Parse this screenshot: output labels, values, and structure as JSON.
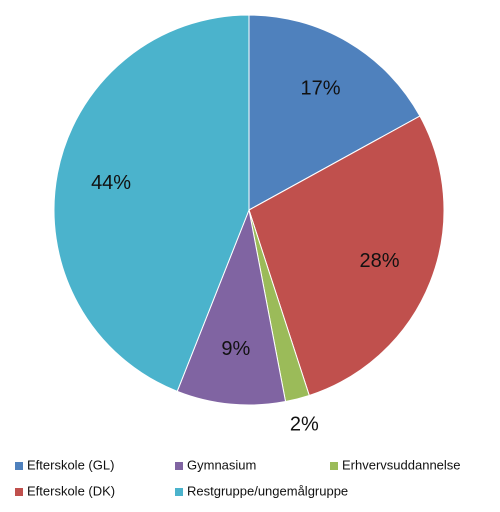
{
  "chart_data": {
    "type": "pie",
    "categories": [
      "Efterskole (GL)",
      "Efterskole (DK)",
      "Erhvervsuddannelse",
      "Gymnasium",
      "Restgruppe/ungemålgruppe"
    ],
    "values": [
      17,
      28,
      2,
      9,
      44
    ],
    "value_labels": [
      "17%",
      "28%",
      "2%",
      "9%",
      "44%"
    ],
    "colors": [
      "#4f81bd",
      "#c0504d",
      "#9bbb59",
      "#8064a2",
      "#4bb3cc"
    ]
  }
}
